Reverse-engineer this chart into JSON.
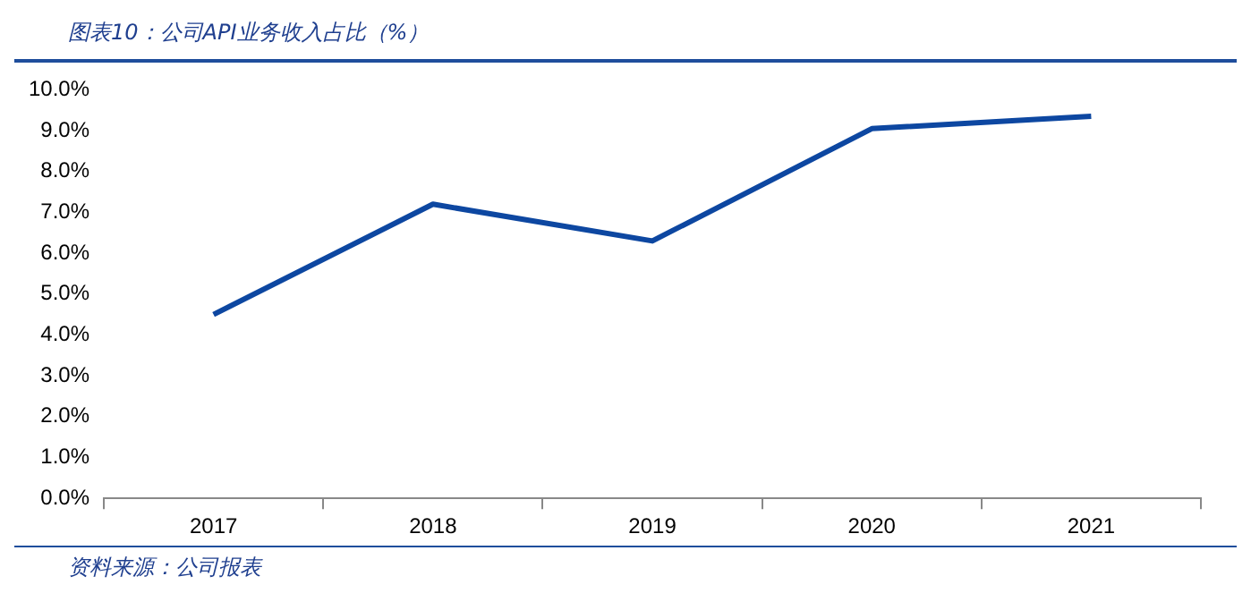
{
  "chart_data": {
    "type": "line",
    "title": "图表10：公司API业务收入占比（%）",
    "categories": [
      "2017",
      "2018",
      "2019",
      "2020",
      "2021"
    ],
    "series": [
      {
        "color": "#0d47a1",
        "values": [
          4.5,
          7.2,
          6.3,
          9.05,
          9.35
        ]
      }
    ],
    "ylim": [
      0,
      10
    ],
    "yticks": [
      {
        "value": 0,
        "label": "0.0%"
      },
      {
        "value": 1,
        "label": "1.0%"
      },
      {
        "value": 2,
        "label": "2.0%"
      },
      {
        "value": 3,
        "label": "3.0%"
      },
      {
        "value": 4,
        "label": "4.0%"
      },
      {
        "value": 5,
        "label": "5.0%"
      },
      {
        "value": 6,
        "label": "6.0%"
      },
      {
        "value": 7,
        "label": "7.0%"
      },
      {
        "value": 8,
        "label": "8.0%"
      },
      {
        "value": 9,
        "label": "9.0%"
      },
      {
        "value": 10,
        "label": "10.0%"
      }
    ],
    "grid": false,
    "legend": false,
    "marker": "none",
    "line_style": "solid",
    "annotations": [
      "资料来源：公司报表"
    ]
  }
}
